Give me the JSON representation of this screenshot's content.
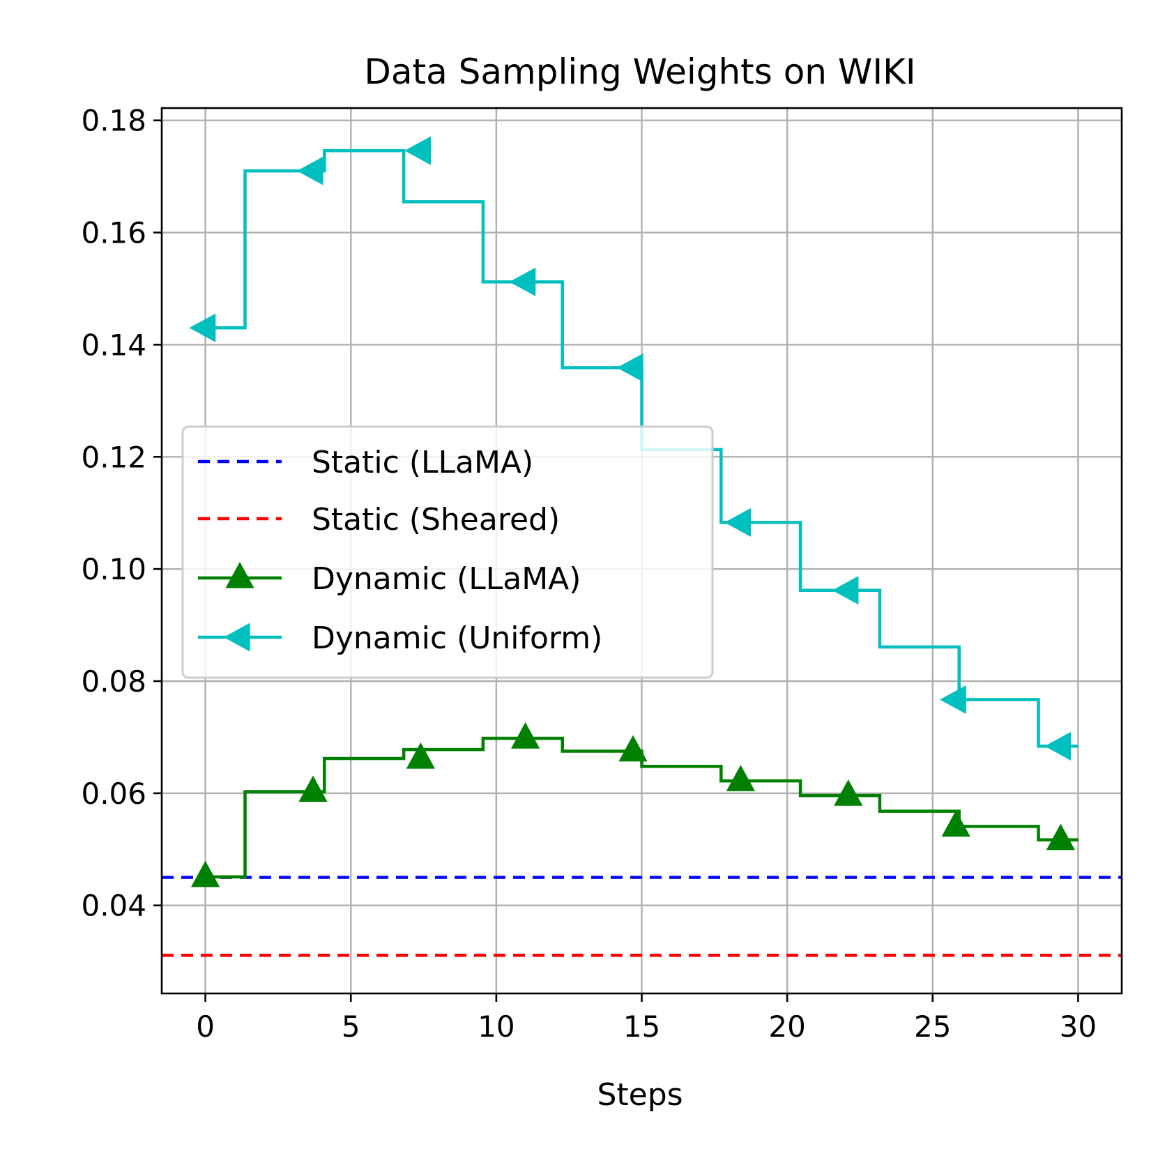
{
  "chart_data": {
    "type": "line",
    "title": "Data Sampling Weights on WIKI",
    "xlabel": "Steps",
    "ylabel": "",
    "xlim": [
      -1.5,
      31.5
    ],
    "ylim": [
      0.0243,
      0.1822
    ],
    "xticks": [
      0,
      5,
      10,
      15,
      20,
      25,
      30
    ],
    "yticks": [
      0.04,
      0.06,
      0.08,
      0.1,
      0.12,
      0.14,
      0.16,
      0.18
    ],
    "ytick_labels": [
      "0.04",
      "0.06",
      "0.08",
      "0.10",
      "0.12",
      "0.14",
      "0.16",
      "0.18"
    ],
    "grid": true,
    "legend": "center-left",
    "series": [
      {
        "name": "Static (LLaMA)",
        "kind": "hline",
        "style": "dashed",
        "color": "#0000ff",
        "value": 0.045
      },
      {
        "name": "Static (Sheared)",
        "kind": "hline",
        "style": "dashed",
        "color": "#ff0000",
        "value": 0.0311
      },
      {
        "name": "Dynamic (LLaMA)",
        "kind": "step",
        "marker": "triangle-up",
        "color": "#008000",
        "values": [
          0.0451,
          0.0603,
          0.0662,
          0.0678,
          0.0698,
          0.0675,
          0.0648,
          0.0622,
          0.0596,
          0.0568,
          0.0541,
          0.0517
        ],
        "markers": [
          [
            0,
            0.0451
          ],
          [
            3.7,
            0.0603
          ],
          [
            7.4,
            0.0662
          ],
          [
            11.0,
            0.0698
          ],
          [
            14.7,
            0.0675
          ],
          [
            18.4,
            0.0622
          ],
          [
            22.1,
            0.0596
          ],
          [
            25.8,
            0.0541
          ],
          [
            29.4,
            0.0517
          ]
        ]
      },
      {
        "name": "Dynamic (Uniform)",
        "kind": "step",
        "marker": "triangle-left",
        "color": "#00bfbf",
        "values": [
          0.143,
          0.171,
          0.1746,
          0.1655,
          0.1512,
          0.1359,
          0.1213,
          0.1083,
          0.0962,
          0.0861,
          0.0767,
          0.0684
        ],
        "markers": [
          [
            0,
            0.143
          ],
          [
            3.7,
            0.171
          ],
          [
            7.4,
            0.1746
          ],
          [
            11.0,
            0.1512
          ],
          [
            14.7,
            0.1359
          ],
          [
            18.4,
            0.1083
          ],
          [
            22.1,
            0.0962
          ],
          [
            25.8,
            0.0767
          ],
          [
            29.4,
            0.0684
          ]
        ]
      }
    ]
  }
}
